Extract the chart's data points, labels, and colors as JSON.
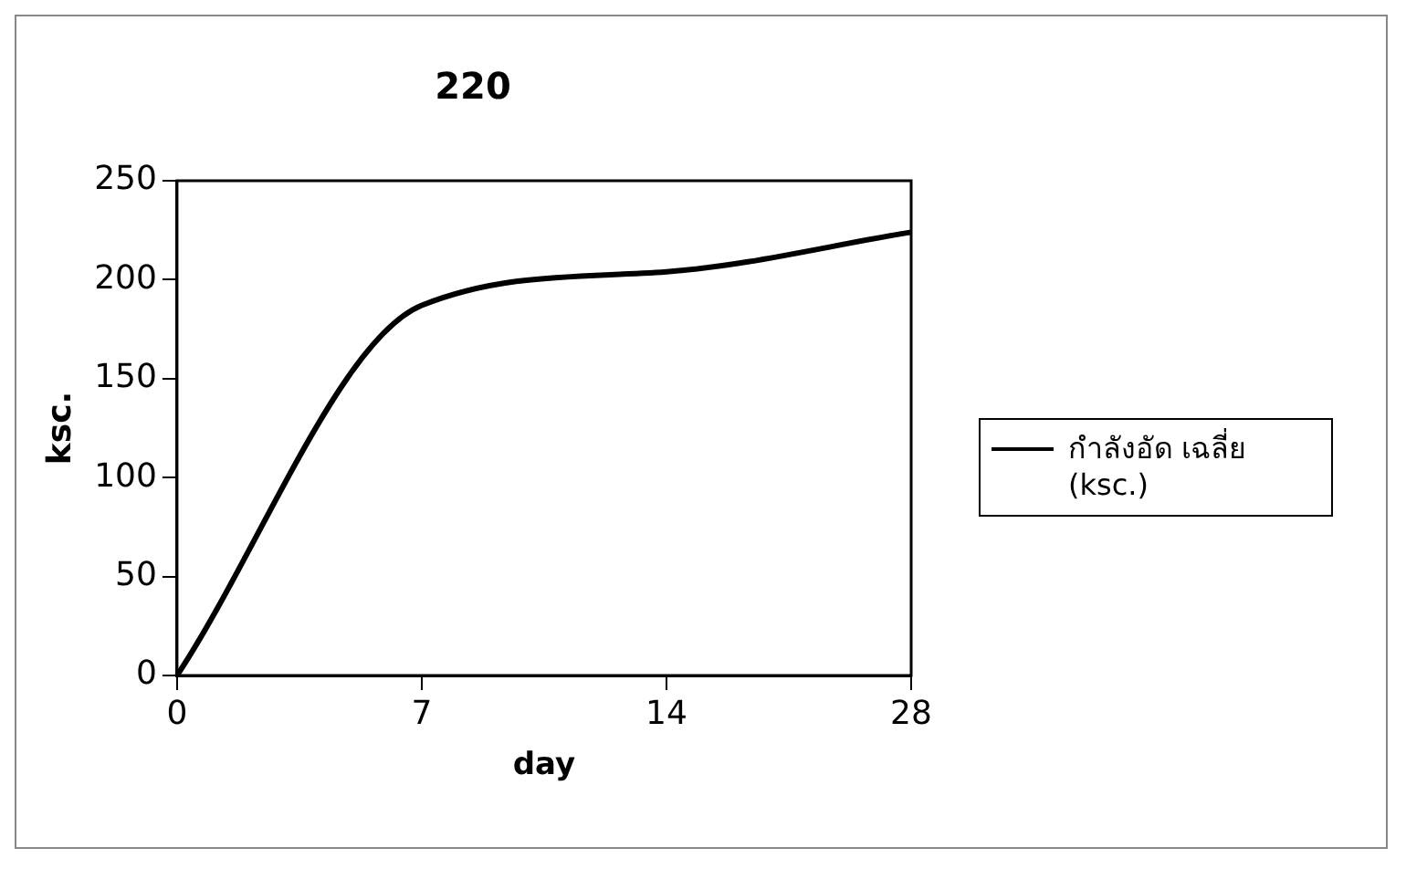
{
  "chart_data": {
    "type": "line",
    "title": "220",
    "xlabel": "day",
    "ylabel": "ksc.",
    "categories": [
      "0",
      "7",
      "14",
      "28"
    ],
    "series": [
      {
        "name": "กำลังอัด เฉลี่ย (ksc.)",
        "color": "#000000",
        "values": [
          0,
          187,
          204,
          224
        ]
      }
    ],
    "ylim": [
      0,
      250
    ],
    "yticks": [
      0,
      50,
      100,
      150,
      200,
      250
    ],
    "grid": false,
    "legend": "right",
    "marker": "none"
  }
}
